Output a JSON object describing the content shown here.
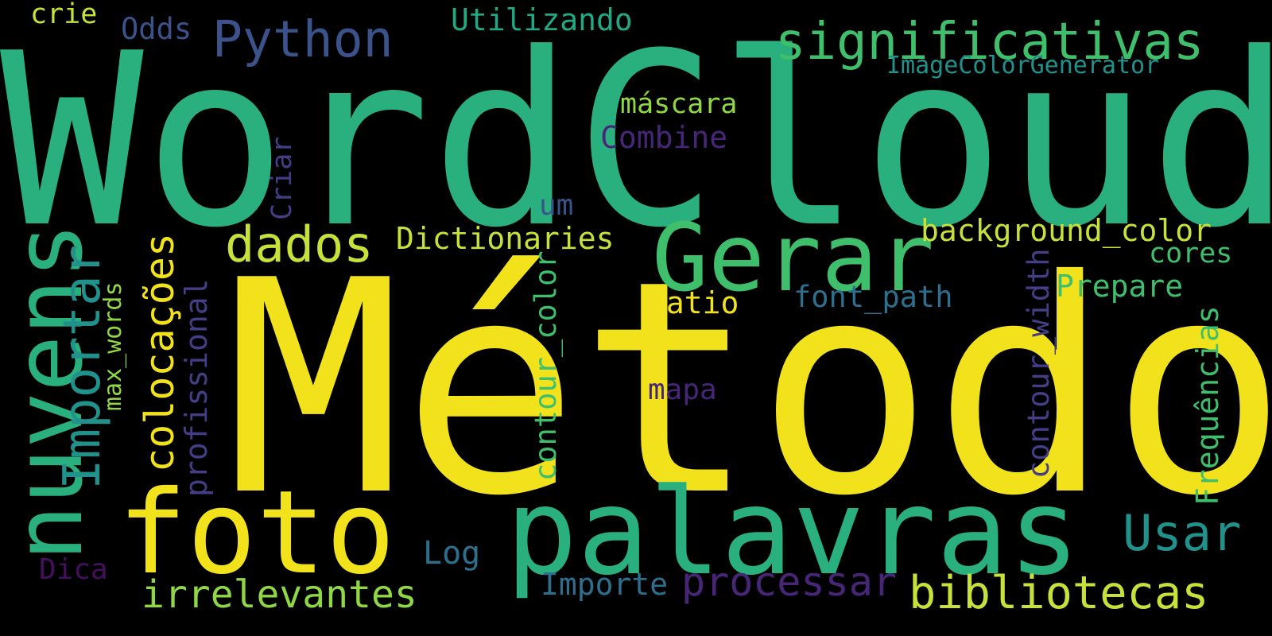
{
  "colors": {
    "background": "#000000",
    "yellow": "#f2e21c",
    "yellow_green": "#c7e03a",
    "light_green": "#8fd744",
    "green": "#3fbf6c",
    "teal_green": "#2ab07f",
    "sea_green": "#23a884",
    "teal": "#21918c",
    "steel_blue": "#2f6f8e",
    "blue": "#3b528b",
    "indigo": "#433e85",
    "purple": "#482677",
    "dark_purple": "#440f5c"
  },
  "words": {
    "metodo": "Método",
    "wordcloud": "WordCloud",
    "palavras": "palavras",
    "foto": "foto",
    "nuvens": "nuvens",
    "gerar": "Gerar",
    "bibliotecas": "bibliotecas",
    "python": "Python",
    "significativas": "significativas",
    "usar": "Usar",
    "dados": "dados",
    "colocacoes": "colocações",
    "importar": "Importar",
    "irrelevantes": "irrelevantes",
    "processar": "processar",
    "background_color": "background_color",
    "dictionaries": "Dictionaries",
    "utilizando": "Utilizando",
    "frequencias": "Frequências",
    "prepare": "Prepare",
    "contour_color": "contour_color",
    "contour_width": "contour_width",
    "profissional": "profissional",
    "combine": "Combine",
    "font_path": "font_path",
    "ratio": "Ratio",
    "mascara": "máscara",
    "importe": "Importe",
    "log": "Log",
    "cores": "cores",
    "criar": "Criar",
    "max_words": "max_words",
    "mapa": "mapa",
    "um": "um",
    "odds": "Odds",
    "crie": "crie",
    "dica": "Dica",
    "imagecolorgenerator": "ImageColorGenerator"
  }
}
